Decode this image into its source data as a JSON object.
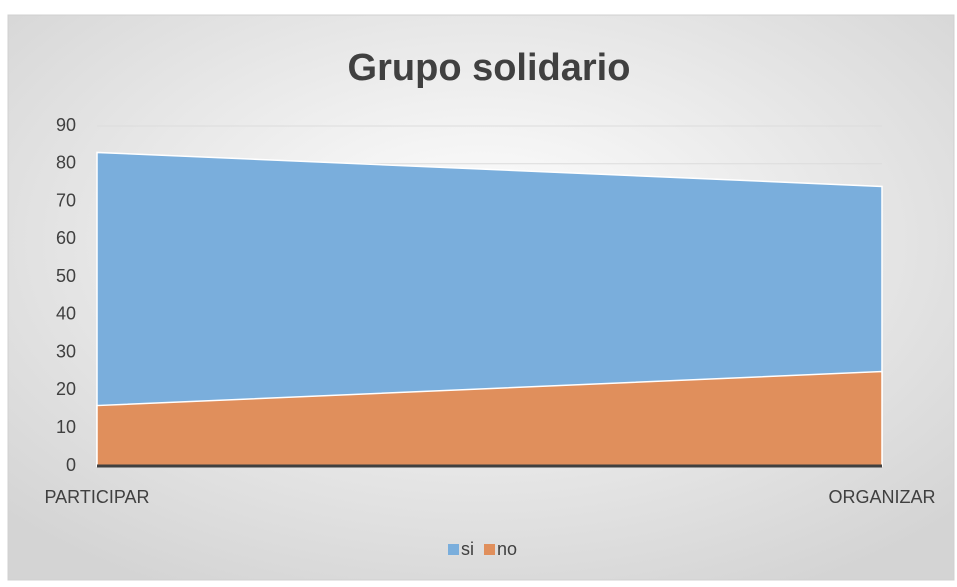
{
  "chart_data": {
    "type": "area",
    "title": "Grupo solidario",
    "categories": [
      "PARTICIPAR",
      "ORGANIZAR"
    ],
    "series": [
      {
        "name": "si",
        "color": "#7aaedc",
        "values": [
          83,
          74
        ]
      },
      {
        "name": "no",
        "color": "#e08f5c",
        "values": [
          16,
          25
        ]
      }
    ],
    "ylim": [
      0,
      90
    ],
    "yticks": [
      0,
      10,
      20,
      30,
      40,
      50,
      60,
      70,
      80,
      90
    ],
    "grid": true,
    "legend": "bottom"
  }
}
